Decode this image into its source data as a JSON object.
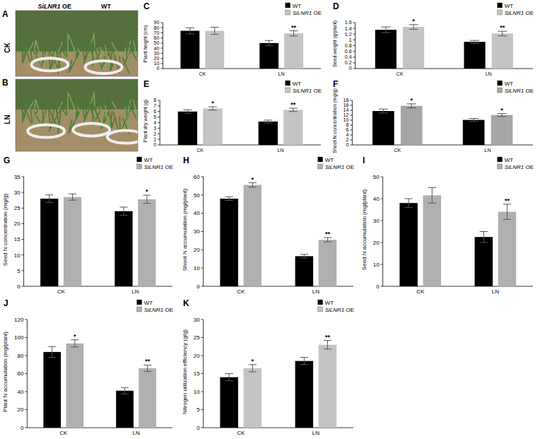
{
  "photos": [
    {
      "panel": "A",
      "label": "CK",
      "captions": [
        "SiLNR1 OE",
        "WT"
      ]
    },
    {
      "panel": "B",
      "label": "LN"
    }
  ],
  "chart_data": [
    {
      "type": "bar",
      "panel": "C",
      "y_label": "Plant height (cm)",
      "categories": [
        "CK",
        "LN"
      ],
      "series": [
        {
          "name": "WT",
          "color": "#000000",
          "values": [
            74,
            50
          ],
          "errors": [
            6,
            5
          ]
        },
        {
          "name": "SiLNR1 OE",
          "color": "#c4c4c4",
          "values": [
            74,
            69
          ],
          "errors": [
            7,
            5
          ],
          "significance": [
            null,
            "**"
          ]
        }
      ],
      "ylim": [
        0,
        90
      ],
      "yticks": [
        0,
        10,
        20,
        30,
        40,
        50,
        60,
        70,
        80,
        90
      ],
      "grid": false,
      "legend": "top-right"
    },
    {
      "type": "bar",
      "panel": "D",
      "y_label": "Seed weight (g/plant)",
      "categories": [
        "CK",
        "LN"
      ],
      "series": [
        {
          "name": "WT",
          "color": "#000000",
          "values": [
            1.35,
            0.93
          ],
          "errors": [
            0.1,
            0.05
          ]
        },
        {
          "name": "SiLNR1 OE",
          "color": "#c4c4c4",
          "values": [
            1.45,
            1.22
          ],
          "errors": [
            0.08,
            0.08
          ],
          "significance": [
            "*",
            "**"
          ]
        }
      ],
      "ylim": [
        0,
        1.6
      ],
      "yticks": [
        0,
        0.2,
        0.4,
        0.6,
        0.8,
        1,
        1.2,
        1.4,
        1.6
      ],
      "grid": false,
      "legend": "top-right"
    },
    {
      "type": "bar",
      "panel": "E",
      "y_label": "Plant dry weight (g)",
      "categories": [
        "CK",
        "LN"
      ],
      "series": [
        {
          "name": "WT",
          "color": "#000000",
          "values": [
            6.0,
            4.2
          ],
          "errors": [
            0.3,
            0.25
          ]
        },
        {
          "name": "SiLNR1 OE",
          "color": "#c4c4c4",
          "values": [
            6.55,
            6.3
          ],
          "errors": [
            0.3,
            0.3
          ],
          "significance": [
            "*",
            "**"
          ]
        }
      ],
      "ylim": [
        0,
        8
      ],
      "yticks": [
        0,
        1,
        2,
        3,
        4,
        5,
        6,
        7,
        8
      ],
      "grid": false,
      "legend": "top-right"
    },
    {
      "type": "bar",
      "panel": "F",
      "y_label": "Shoot N concentration (mg/g)",
      "categories": [
        "CK",
        "LN"
      ],
      "series": [
        {
          "name": "WT",
          "color": "#000000",
          "values": [
            13.7,
            10.1
          ],
          "errors": [
            0.8,
            0.6
          ]
        },
        {
          "name": "SiLNR1 OE",
          "color": "#a6a6a6",
          "values": [
            15.8,
            12.1
          ],
          "errors": [
            0.8,
            0.6
          ],
          "significance": [
            "*",
            "*"
          ]
        }
      ],
      "ylim": [
        0,
        18
      ],
      "yticks": [
        0,
        2,
        4,
        6,
        8,
        10,
        12,
        14,
        16,
        18
      ],
      "grid": false,
      "legend": "top-right"
    },
    {
      "type": "bar",
      "panel": "G",
      "y_label": "Seed N concentration (mg/g)",
      "categories": [
        "CK",
        "LN"
      ],
      "series": [
        {
          "name": "WT",
          "color": "#000000",
          "values": [
            28,
            24
          ],
          "errors": [
            1.2,
            1.3
          ]
        },
        {
          "name": "SiLNR1 OE",
          "color": "#b0b0b0",
          "values": [
            28.5,
            27.8
          ],
          "errors": [
            1,
            1.3
          ],
          "significance": [
            null,
            "*"
          ]
        }
      ],
      "ylim": [
        0,
        35
      ],
      "yticks": [
        0,
        5,
        10,
        15,
        20,
        25,
        30,
        35
      ],
      "grid": false,
      "legend": "top-right"
    },
    {
      "type": "bar",
      "panel": "H",
      "y_label": "Shoot N accumulation (mg/plant)",
      "categories": [
        "CK",
        "LN"
      ],
      "series": [
        {
          "name": "WT",
          "color": "#000000",
          "values": [
            48,
            16.5
          ],
          "errors": [
            1,
            1
          ]
        },
        {
          "name": "SiLNR1 OE",
          "color": "#b0b0b0",
          "values": [
            55.5,
            25.5
          ],
          "errors": [
            1.2,
            1.2
          ],
          "significance": [
            "*",
            "**"
          ]
        }
      ],
      "ylim": [
        0,
        60
      ],
      "yticks": [
        0,
        10,
        20,
        30,
        40,
        50,
        60
      ],
      "grid": false,
      "legend": "top-right"
    },
    {
      "type": "bar",
      "panel": "I",
      "y_label": "Seed N accumulation (mg/plant)",
      "categories": [
        "CK",
        "LN"
      ],
      "series": [
        {
          "name": "WT",
          "color": "#000000",
          "values": [
            38,
            22.5
          ],
          "errors": [
            2,
            2.5
          ]
        },
        {
          "name": "SiLNR1 OE",
          "color": "#b0b0b0",
          "values": [
            41.5,
            34
          ],
          "errors": [
            3.5,
            3.5
          ],
          "significance": [
            null,
            "**"
          ]
        }
      ],
      "ylim": [
        0,
        50
      ],
      "yticks": [
        0,
        10,
        20,
        30,
        40,
        50
      ],
      "grid": false,
      "legend": "top-right"
    },
    {
      "type": "bar",
      "panel": "J",
      "y_label": "Plant N accumulation (mg/plant)",
      "categories": [
        "CK",
        "LN"
      ],
      "series": [
        {
          "name": "WT",
          "color": "#000000",
          "values": [
            84,
            41
          ],
          "errors": [
            6,
            3.5
          ]
        },
        {
          "name": "SiLNR1 OE",
          "color": "#b0b0b0",
          "values": [
            93.5,
            66
          ],
          "errors": [
            4,
            3.5
          ],
          "significance": [
            "*",
            "**"
          ]
        }
      ],
      "ylim": [
        0,
        120
      ],
      "yticks": [
        0,
        20,
        40,
        60,
        80,
        100,
        120
      ],
      "grid": false,
      "legend": "top-right"
    },
    {
      "type": "bar",
      "panel": "K",
      "y_label": "Nitrogen utilization efficiency (g/g)",
      "categories": [
        "CK",
        "LN"
      ],
      "series": [
        {
          "name": "WT",
          "color": "#000000",
          "values": [
            14,
            18.5
          ],
          "errors": [
            1,
            1
          ]
        },
        {
          "name": "SiLNR1 OE",
          "color": "#c4c4c4",
          "values": [
            16.5,
            23
          ],
          "errors": [
            1,
            1.2
          ],
          "significance": [
            "*",
            "**"
          ]
        }
      ],
      "ylim": [
        0,
        30
      ],
      "yticks": [
        0,
        5,
        10,
        15,
        20,
        25,
        30
      ],
      "grid": false,
      "legend": "top-right"
    }
  ]
}
